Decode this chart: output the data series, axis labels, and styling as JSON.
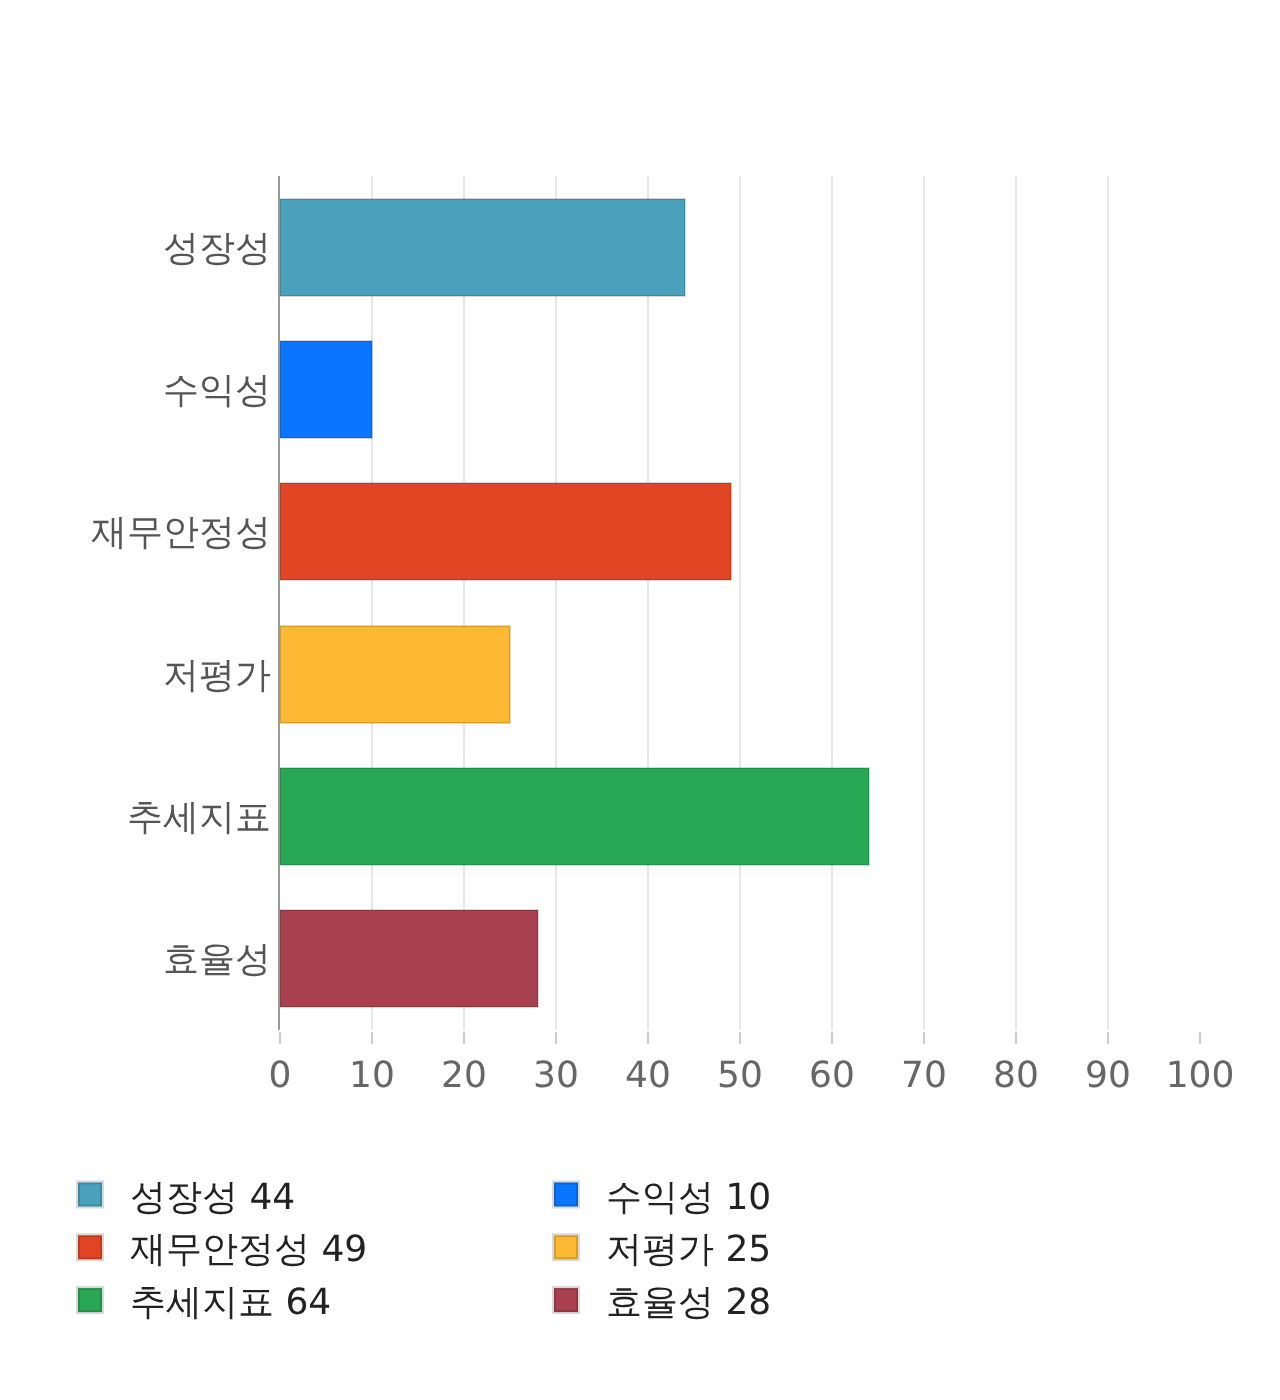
{
  "chart_data": {
    "type": "bar",
    "orientation": "horizontal",
    "stacked": true,
    "categories": [
      "성장성",
      "수익성",
      "재무안정성",
      "저평가",
      "추세지표",
      "효율성"
    ],
    "series": [
      {
        "name": "성장성 44",
        "color": "#4aa1bb",
        "values": [
          44,
          null,
          null,
          null,
          null,
          null
        ]
      },
      {
        "name": "수익성 10",
        "color": "#0a75ff",
        "values": [
          null,
          10,
          null,
          null,
          null,
          null
        ]
      },
      {
        "name": "재무안정성 49",
        "color": "#e24524",
        "values": [
          null,
          null,
          49,
          null,
          null,
          null
        ]
      },
      {
        "name": "저평가 25",
        "color": "#fdb933",
        "values": [
          null,
          null,
          null,
          25,
          null,
          null
        ]
      },
      {
        "name": "추세지표 64",
        "color": "#28a754",
        "values": [
          null,
          null,
          null,
          null,
          64,
          null
        ]
      },
      {
        "name": "효율성 28",
        "color": "#a8404f",
        "values": [
          null,
          null,
          null,
          null,
          null,
          28
        ]
      }
    ],
    "xlim": [
      0,
      100
    ],
    "xticks": [
      0,
      10,
      20,
      30,
      40,
      50,
      60,
      70,
      80,
      90,
      100
    ],
    "grid": "x",
    "legend": "bottom"
  }
}
